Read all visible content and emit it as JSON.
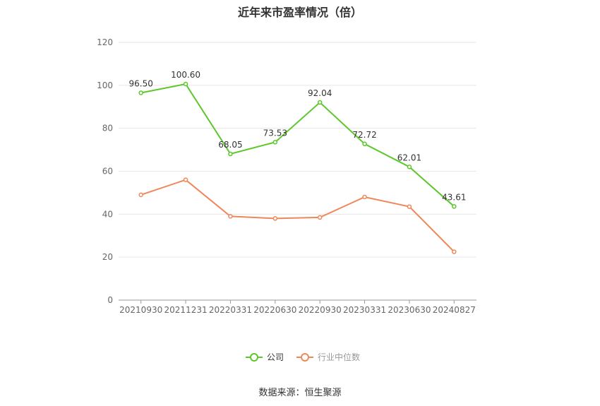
{
  "chart_data": {
    "type": "line",
    "title": "近年来市盈率情况（倍）",
    "categories": [
      "20210930",
      "20211231",
      "20220331",
      "20220630",
      "20220930",
      "20230331",
      "20230630",
      "20240827"
    ],
    "series": [
      {
        "name": "公司",
        "values": [
          96.5,
          100.6,
          68.05,
          73.53,
          92.04,
          72.72,
          62.01,
          43.61
        ],
        "labels": [
          "96.50",
          "100.60",
          "68.05",
          "73.53",
          "92.04",
          "72.72",
          "62.01",
          "43.61"
        ],
        "color": "#5cc72a"
      },
      {
        "name": "行业中位数",
        "values": [
          49,
          56,
          39,
          38,
          38.5,
          48,
          43.5,
          22.5
        ],
        "color": "#f0875a"
      }
    ],
    "ylim": [
      0,
      120
    ],
    "yticks": [
      0,
      20,
      40,
      60,
      80,
      100,
      120
    ],
    "grid": true,
    "legend": "bottom-center",
    "source": "数据来源：恒生聚源"
  }
}
